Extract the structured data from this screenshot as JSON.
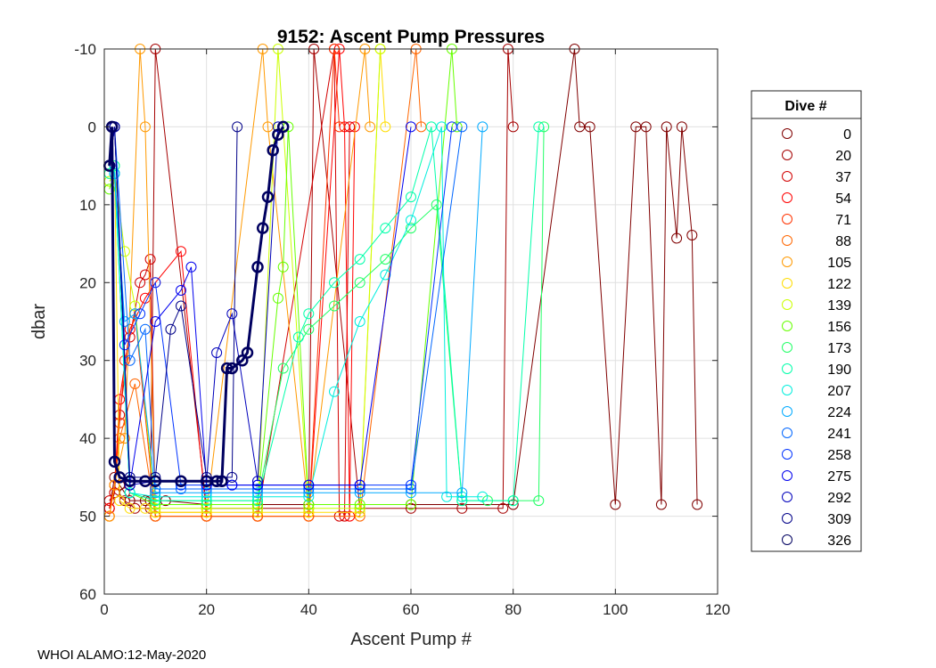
{
  "chart_data": {
    "type": "scatter",
    "title": "9152: Ascent Pump Pressures",
    "xlabel": "Ascent Pump #",
    "ylabel": "dbar",
    "xlim": [
      0,
      120
    ],
    "ylim": [
      -10,
      60
    ],
    "y_reversed": true,
    "xticks": [
      "0",
      "20",
      "40",
      "60",
      "80",
      "100",
      "120"
    ],
    "yticks": [
      "-10",
      "0",
      "10",
      "20",
      "30",
      "40",
      "50",
      "60"
    ],
    "grid": true,
    "marker": "open-circle",
    "legend_title": "Dive #",
    "legend_position": "outside-right",
    "series": [
      {
        "name": "0",
        "color": "#800000",
        "x": [
          1,
          2,
          3,
          4,
          5,
          8,
          9,
          10,
          12,
          20,
          30,
          40,
          60,
          80,
          92,
          93,
          95,
          100,
          104,
          106,
          109,
          110,
          112,
          113,
          115,
          116
        ],
        "y": [
          49,
          45,
          46,
          47,
          48,
          48,
          48,
          48,
          48,
          48.5,
          48.5,
          48.5,
          48.5,
          48.5,
          -10,
          0,
          0,
          48.5,
          0,
          0,
          48.5,
          0,
          14.3,
          0,
          13.9,
          48.5
        ]
      },
      {
        "name": "20",
        "color": "#a50000",
        "x": [
          1,
          2,
          4,
          6,
          9,
          10,
          20,
          30,
          40,
          41,
          50,
          60,
          70,
          78,
          79,
          80
        ],
        "y": [
          49,
          47,
          48,
          49,
          49,
          -10,
          49,
          49,
          49,
          -10,
          49,
          49,
          49,
          49,
          -10,
          0
        ]
      },
      {
        "name": "37",
        "color": "#d20000",
        "x": [
          1,
          2,
          3,
          5,
          7,
          8,
          9,
          10,
          20,
          30,
          45,
          46,
          47,
          48
        ],
        "y": [
          48,
          47,
          37,
          27,
          20,
          19,
          17,
          50,
          50,
          50,
          -10,
          50,
          50,
          0
        ]
      },
      {
        "name": "54",
        "color": "#ff0000",
        "x": [
          1,
          2,
          3,
          5,
          8,
          10,
          15,
          20,
          30,
          40,
          46,
          47,
          48,
          49
        ],
        "y": [
          49,
          46,
          35,
          26,
          22,
          20,
          16,
          50,
          50,
          50,
          -10,
          0,
          50,
          0
        ]
      },
      {
        "name": "71",
        "color": "#ff3300",
        "x": [
          1,
          2,
          3,
          4,
          6,
          10,
          20,
          30,
          40,
          45,
          46
        ],
        "y": [
          50,
          46,
          38,
          30,
          24,
          50,
          50,
          50,
          50,
          -10,
          0
        ]
      },
      {
        "name": "88",
        "color": "#ff6600",
        "x": [
          1,
          2,
          3,
          6,
          10,
          20,
          30,
          40,
          50,
          61,
          62
        ],
        "y": [
          50,
          46,
          40,
          33,
          50,
          50,
          50,
          50,
          50,
          -10,
          0
        ]
      },
      {
        "name": "105",
        "color": "#ff9900",
        "x": [
          1,
          2,
          4,
          7,
          8,
          10,
          20,
          31,
          32,
          40,
          51,
          52
        ],
        "y": [
          50,
          46,
          40,
          -10,
          0,
          49.5,
          49.5,
          -10,
          0,
          49.5,
          -10,
          0
        ]
      },
      {
        "name": "122",
        "color": "#ffdd00",
        "x": [
          1,
          2,
          3,
          5,
          8,
          10,
          20,
          30,
          40,
          50,
          54,
          55
        ],
        "y": [
          6,
          5,
          48,
          49,
          49,
          49.5,
          49.5,
          49.5,
          49.5,
          49.5,
          -10,
          0
        ]
      },
      {
        "name": "139",
        "color": "#ccff00",
        "x": [
          1,
          2,
          4,
          6,
          10,
          20,
          30,
          34,
          35,
          40,
          50,
          54
        ],
        "y": [
          7,
          6,
          16,
          23,
          49,
          49,
          49,
          -10,
          0,
          49,
          49,
          -10
        ]
      },
      {
        "name": "156",
        "color": "#66ff00",
        "x": [
          1,
          2,
          5,
          10,
          20,
          30,
          34,
          35,
          36,
          40,
          50,
          60,
          68,
          69
        ],
        "y": [
          8,
          6,
          47,
          48.5,
          48.5,
          48.5,
          22,
          18,
          0,
          48.5,
          48.5,
          48.5,
          -10,
          0
        ]
      },
      {
        "name": "173",
        "color": "#22ff66",
        "x": [
          1,
          2,
          5,
          10,
          20,
          30,
          35,
          40,
          45,
          50,
          55,
          60,
          65,
          70,
          75,
          80,
          85,
          86
        ],
        "y": [
          5,
          6,
          47,
          48,
          48,
          48,
          31,
          26,
          23,
          20,
          17,
          13,
          10,
          48,
          48,
          48,
          48,
          0
        ]
      },
      {
        "name": "190",
        "color": "#00ffaa",
        "x": [
          1,
          2,
          5,
          10,
          20,
          30,
          38,
          40,
          45,
          50,
          55,
          60,
          64,
          70,
          80,
          85
        ],
        "y": [
          6,
          5,
          47,
          48,
          48,
          48,
          27,
          24,
          20,
          17,
          13,
          9,
          0,
          48,
          48,
          0
        ]
      },
      {
        "name": "207",
        "color": "#00eedd",
        "x": [
          1,
          2,
          5,
          10,
          20,
          30,
          40,
          45,
          50,
          55,
          60,
          66,
          67,
          70,
          74
        ],
        "y": [
          5,
          6,
          47,
          47.5,
          47.5,
          47.5,
          47.5,
          34,
          25,
          19,
          12,
          0,
          47.5,
          47.5,
          47.5
        ]
      },
      {
        "name": "224",
        "color": "#00aaff",
        "x": [
          1,
          2,
          4,
          6,
          10,
          20,
          30,
          40,
          50,
          60,
          70,
          74
        ],
        "y": [
          5,
          6,
          25,
          24,
          47,
          47,
          47,
          47,
          47,
          47,
          47,
          0
        ]
      },
      {
        "name": "241",
        "color": "#0066ff",
        "x": [
          1,
          2,
          5,
          8,
          10,
          15,
          20,
          30,
          40,
          50,
          60,
          70
        ],
        "y": [
          5,
          0,
          30,
          26,
          46.5,
          46.5,
          46.5,
          46.5,
          46.5,
          46.5,
          46.5,
          0
        ]
      },
      {
        "name": "258",
        "color": "#0033ff",
        "x": [
          1,
          2,
          4,
          7,
          10,
          15,
          20,
          25,
          30,
          40,
          50,
          60,
          68
        ],
        "y": [
          5,
          0,
          28,
          24,
          20,
          46,
          46,
          46,
          46,
          46,
          46,
          46,
          0
        ]
      },
      {
        "name": "275",
        "color": "#0000ee",
        "x": [
          1,
          2,
          5,
          10,
          15,
          17,
          20,
          25,
          30,
          40,
          50,
          60
        ],
        "y": [
          5,
          0,
          46,
          25,
          21,
          18,
          46,
          46,
          46,
          46,
          46,
          0
        ]
      },
      {
        "name": "292",
        "color": "#0000bb",
        "x": [
          1,
          2,
          5,
          10,
          15,
          20,
          22,
          25,
          30,
          34
        ],
        "y": [
          5,
          0,
          46,
          45.5,
          45.5,
          45.5,
          29,
          24,
          45.5,
          0
        ]
      },
      {
        "name": "309",
        "color": "#000088",
        "x": [
          1,
          2,
          5,
          10,
          13,
          15,
          20,
          25,
          26
        ],
        "y": [
          5,
          0,
          45,
          45,
          26,
          23,
          45,
          45,
          0
        ]
      },
      {
        "name": "326",
        "color": "#000060",
        "x": [
          1,
          1.5,
          2,
          3,
          5,
          8,
          10,
          15,
          20,
          22,
          23,
          24,
          25,
          27,
          28,
          30,
          31,
          32,
          33,
          34,
          35
        ],
        "y": [
          5,
          0,
          43,
          45,
          45.5,
          45.5,
          45.5,
          45.5,
          45.5,
          45.5,
          45.5,
          31,
          31,
          30,
          29,
          18,
          13,
          9,
          3,
          1,
          0
        ]
      }
    ]
  },
  "footer": "WHOI ALAMO:12-May-2020"
}
